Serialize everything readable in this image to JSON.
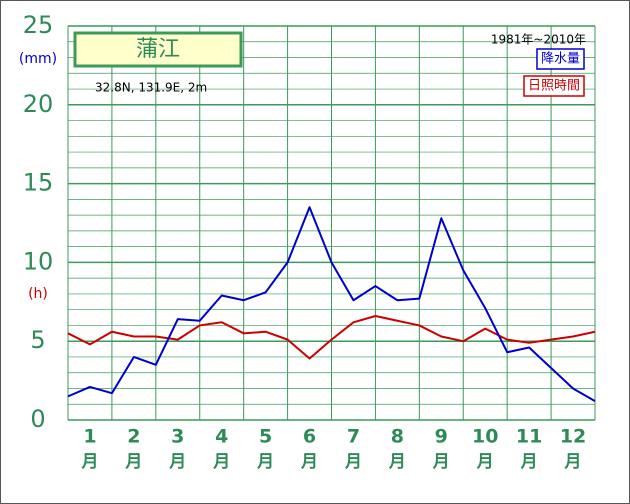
{
  "chart_data": {
    "type": "line",
    "title": "蒲江",
    "subtitle": "32.8N,  131.9E,  2m",
    "period": "1981年~2010年",
    "ylabel": "(mm)",
    "ylabel_color": "#0000cc",
    "ylabel2": "(h)",
    "ylabel2_color": "#cc0000",
    "x_unit": "月",
    "x": [
      0.5,
      1.0,
      1.5,
      2.0,
      2.5,
      3.0,
      3.5,
      4.0,
      4.5,
      5.0,
      5.5,
      6.0,
      6.5,
      7.0,
      7.5,
      8.0,
      8.5,
      9.0,
      9.5,
      10.0,
      10.5,
      11.0,
      11.5,
      12.0,
      12.5
    ],
    "xlim": [
      0.5,
      12.5
    ],
    "xticks": [
      1,
      2,
      3,
      4,
      5,
      6,
      7,
      8,
      9,
      10,
      11,
      12
    ],
    "ylim": [
      0,
      25
    ],
    "yticks": [
      0,
      5,
      10,
      15,
      20,
      25
    ],
    "grid": true,
    "series": [
      {
        "name": "降水量",
        "color": "#0000cc",
        "values": [
          1.5,
          2.1,
          1.7,
          4.0,
          3.5,
          6.4,
          6.3,
          7.9,
          7.6,
          8.1,
          10.0,
          13.5,
          10.0,
          7.6,
          8.5,
          7.6,
          7.7,
          12.8,
          9.5,
          7.1,
          4.3,
          4.6,
          3.3,
          2.0,
          1.2
        ]
      },
      {
        "name": "日照時間",
        "color": "#cc0000",
        "values": [
          5.5,
          4.8,
          5.6,
          5.3,
          5.3,
          5.1,
          6.0,
          6.2,
          5.5,
          5.6,
          5.1,
          3.9,
          5.1,
          6.2,
          6.6,
          6.3,
          6.0,
          5.3,
          5.0,
          5.8,
          5.1,
          4.9,
          5.1,
          5.3,
          5.6
        ]
      }
    ]
  }
}
